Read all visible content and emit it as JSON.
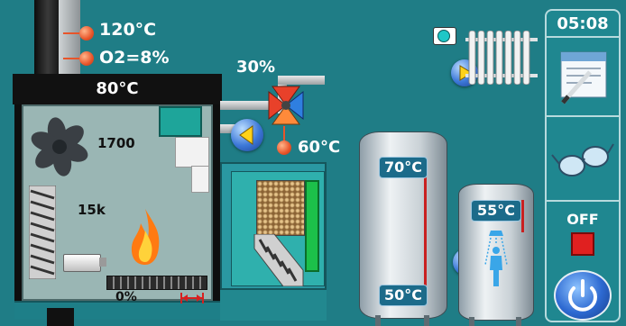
{
  "flue": {
    "temp": "120°C",
    "o2": "O2=8%"
  },
  "boiler": {
    "temp": "80°C",
    "fan_speed": "1700",
    "fuel_value": "15k",
    "grate_percent": "0%"
  },
  "valve": {
    "percent": "30%",
    "temp": "60°C"
  },
  "buffer_tank": {
    "top_temp": "70°C",
    "bottom_temp": "50°C"
  },
  "dhw_tank": {
    "temp": "55°C"
  },
  "sidebar": {
    "clock": "05:08",
    "status": "OFF"
  },
  "colors": {
    "background": "#1f7d86",
    "panel": "#2a98a2",
    "flame": "#ff9a1a",
    "status_off": "#e02020"
  },
  "icons": [
    "fan-icon",
    "flame-icon",
    "screw-conveyor-icon",
    "ignitor-icon",
    "mixing-valve-icon",
    "radiator-icon",
    "shower-icon",
    "settings-icon",
    "glasses-icon",
    "power-icon",
    "play-icon"
  ]
}
